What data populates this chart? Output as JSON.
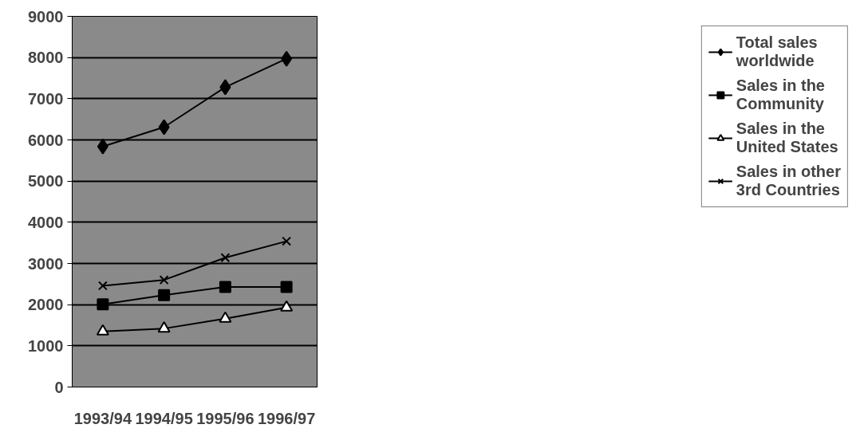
{
  "chart_data": {
    "type": "line",
    "categories": [
      "1993/94",
      "1994/95",
      "1995/96",
      "1996/97"
    ],
    "ylim": [
      0,
      9000
    ],
    "yticks": [
      0,
      1000,
      2000,
      3000,
      4000,
      5000,
      6000,
      7000,
      8000,
      9000
    ],
    "grid": "y",
    "legend": "right",
    "series": [
      {
        "name": "Total sales worldwide",
        "color": "#000000",
        "marker": "diamond",
        "values": [
          5840,
          6310,
          7280,
          7970
        ]
      },
      {
        "name": "Sales in the Community",
        "color": "#000000",
        "marker": "square",
        "values": [
          2010,
          2230,
          2430,
          2430
        ]
      },
      {
        "name": "Sales in the United States",
        "color": "#000000",
        "marker": "triangle",
        "values": [
          1350,
          1420,
          1660,
          1930
        ]
      },
      {
        "name": "Sales in other 3rd Countries",
        "color": "#000000",
        "marker": "cross",
        "values": [
          2460,
          2600,
          3140,
          3540
        ]
      }
    ]
  }
}
